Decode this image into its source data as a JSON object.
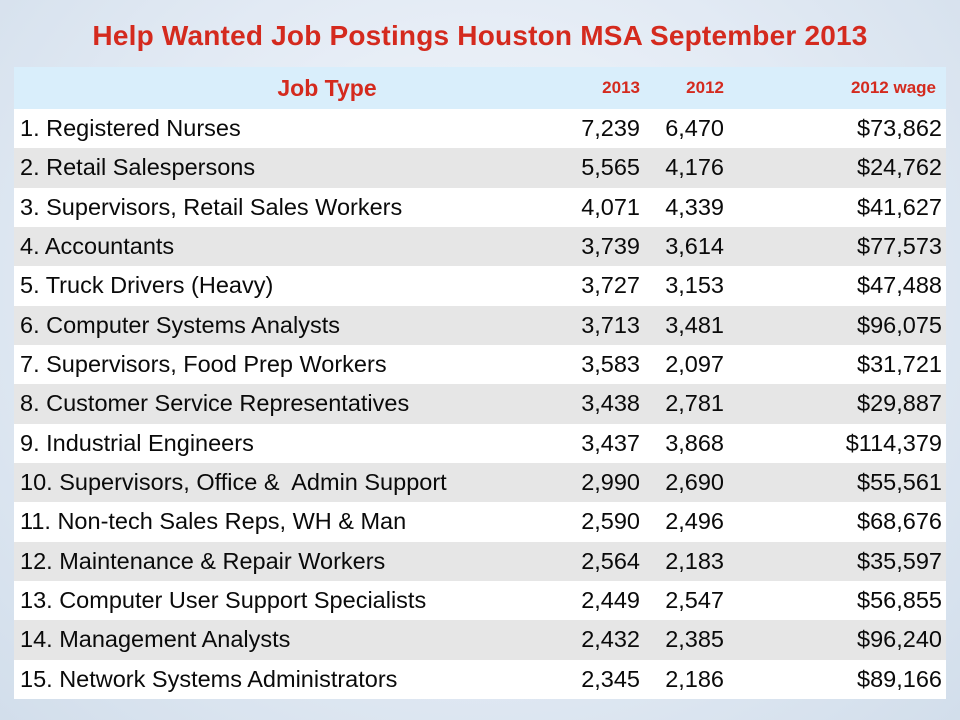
{
  "title": "Help Wanted Job Postings Houston MSA September 2013",
  "table": {
    "headers": {
      "job_type": "Job Type",
      "y2013": "2013",
      "y2012": "2012",
      "wage": "2012 wage"
    },
    "rows": [
      {
        "job": "1. Registered Nurses",
        "y2013": "7,239",
        "y2012": "6,470",
        "wage": "$73,862"
      },
      {
        "job": "2. Retail Salespersons",
        "y2013": "5,565",
        "y2012": "4,176",
        "wage": "$24,762"
      },
      {
        "job": "3. Supervisors, Retail Sales Workers",
        "y2013": "4,071",
        "y2012": "4,339",
        "wage": "$41,627"
      },
      {
        "job": "4. Accountants",
        "y2013": "3,739",
        "y2012": "3,614",
        "wage": "$77,573"
      },
      {
        "job": "5. Truck Drivers (Heavy)",
        "y2013": "3,727",
        "y2012": "3,153",
        "wage": "$47,488"
      },
      {
        "job": "6. Computer Systems Analysts",
        "y2013": "3,713",
        "y2012": "3,481",
        "wage": "$96,075"
      },
      {
        "job": "7. Supervisors, Food Prep Workers",
        "y2013": "3,583",
        "y2012": "2,097",
        "wage": "$31,721"
      },
      {
        "job": "8. Customer Service Representatives",
        "y2013": "3,438",
        "y2012": "2,781",
        "wage": "$29,887"
      },
      {
        "job": "9. Industrial Engineers",
        "y2013": "3,437",
        "y2012": "3,868",
        "wage": "$114,379"
      },
      {
        "job": "10. Supervisors, Office &  Admin Support",
        "y2013": "2,990",
        "y2012": "2,690",
        "wage": "$55,561"
      },
      {
        "job": "11. Non-tech Sales Reps, WH & Man",
        "y2013": "2,590",
        "y2012": "2,496",
        "wage": "$68,676"
      },
      {
        "job": "12. Maintenance & Repair Workers",
        "y2013": "2,564",
        "y2012": "2,183",
        "wage": "$35,597"
      },
      {
        "job": "13. Computer User Support Specialists",
        "y2013": "2,449",
        "y2012": "2,547",
        "wage": "$56,855"
      },
      {
        "job": "14. Management Analysts",
        "y2013": "2,432",
        "y2012": "2,385",
        "wage": "$96,240"
      },
      {
        "job": "15. Network Systems Administrators",
        "y2013": "2,345",
        "y2012": "2,186",
        "wage": "$89,166"
      }
    ]
  },
  "colors": {
    "title": "#d42a1e",
    "header_bg": "#d9eefb",
    "row_odd": "#ffffff",
    "row_even": "#e6e6e6",
    "background": "#e4ecf5"
  }
}
